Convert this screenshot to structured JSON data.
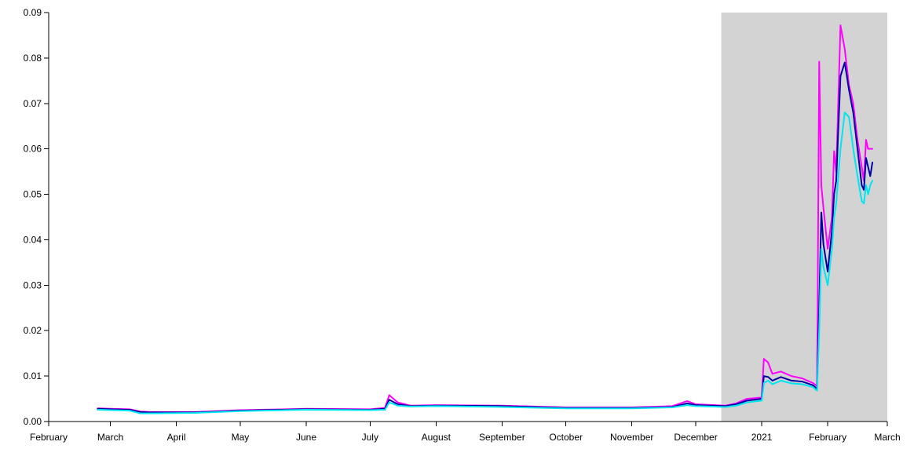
{
  "chart_data": {
    "type": "line",
    "title": "",
    "xlabel": "",
    "ylabel": "",
    "xlim": [
      "2020-02-01",
      "2021-03-01"
    ],
    "ylim": [
      0,
      0.09
    ],
    "grid": false,
    "highlight_region": {
      "start": "2020-12-13",
      "end": "2021-03-01",
      "color": "#d3d3d3"
    },
    "x_tick_labels": [
      {
        "date": "2020-02-01",
        "label": "February"
      },
      {
        "date": "2020-03-01",
        "label": "March"
      },
      {
        "date": "2020-04-01",
        "label": "April"
      },
      {
        "date": "2020-05-01",
        "label": "May"
      },
      {
        "date": "2020-06-01",
        "label": "June"
      },
      {
        "date": "2020-07-01",
        "label": "July"
      },
      {
        "date": "2020-08-01",
        "label": "August"
      },
      {
        "date": "2020-09-01",
        "label": "September"
      },
      {
        "date": "2020-10-01",
        "label": "October"
      },
      {
        "date": "2020-11-01",
        "label": "November"
      },
      {
        "date": "2020-12-01",
        "label": "December"
      },
      {
        "date": "2021-01-01",
        "label": "2021"
      },
      {
        "date": "2021-02-01",
        "label": "February"
      },
      {
        "date": "2021-03-01",
        "label": "March"
      }
    ],
    "y_tick_labels": [
      "0.00",
      "0.01",
      "0.02",
      "0.03",
      "0.04",
      "0.05",
      "0.06",
      "0.07",
      "0.08",
      "0.09"
    ],
    "y_ticks": [
      0,
      0.01,
      0.02,
      0.03,
      0.04,
      0.05,
      0.06,
      0.07,
      0.08,
      0.09
    ],
    "series": [
      {
        "color": "#ff00ff",
        "points": [
          [
            "2020-02-24",
            0.0029
          ],
          [
            "2020-03-01",
            0.0028
          ],
          [
            "2020-03-10",
            0.0027
          ],
          [
            "2020-03-15",
            0.0022
          ],
          [
            "2020-03-20",
            0.0021
          ],
          [
            "2020-04-10",
            0.0021
          ],
          [
            "2020-05-01",
            0.0025
          ],
          [
            "2020-06-01",
            0.0028
          ],
          [
            "2020-07-01",
            0.0027
          ],
          [
            "2020-07-08",
            0.003
          ],
          [
            "2020-07-10",
            0.0058
          ],
          [
            "2020-07-14",
            0.0042
          ],
          [
            "2020-07-20",
            0.0035
          ],
          [
            "2020-08-01",
            0.0036
          ],
          [
            "2020-09-01",
            0.0035
          ],
          [
            "2020-10-01",
            0.0031
          ],
          [
            "2020-11-01",
            0.0031
          ],
          [
            "2020-11-20",
            0.0034
          ],
          [
            "2020-11-27",
            0.0045
          ],
          [
            "2020-12-01",
            0.0038
          ],
          [
            "2020-12-15",
            0.0035
          ],
          [
            "2020-12-20",
            0.004
          ],
          [
            "2020-12-25",
            0.005
          ],
          [
            "2021-01-01",
            0.0053
          ],
          [
            "2021-01-02",
            0.0138
          ],
          [
            "2021-01-04",
            0.013
          ],
          [
            "2021-01-06",
            0.0105
          ],
          [
            "2021-01-10",
            0.011
          ],
          [
            "2021-01-15",
            0.01
          ],
          [
            "2021-01-20",
            0.0095
          ],
          [
            "2021-01-25",
            0.0085
          ],
          [
            "2021-01-27",
            0.0078
          ],
          [
            "2021-01-28",
            0.0792
          ],
          [
            "2021-01-29",
            0.052
          ],
          [
            "2021-01-30",
            0.047
          ],
          [
            "2021-02-01",
            0.038
          ],
          [
            "2021-02-03",
            0.045
          ],
          [
            "2021-02-04",
            0.0595
          ],
          [
            "2021-02-05",
            0.055
          ],
          [
            "2021-02-07",
            0.0872
          ],
          [
            "2021-02-09",
            0.082
          ],
          [
            "2021-02-11",
            0.074
          ],
          [
            "2021-02-13",
            0.07
          ],
          [
            "2021-02-15",
            0.062
          ],
          [
            "2021-02-17",
            0.056
          ],
          [
            "2021-02-18",
            0.053
          ],
          [
            "2021-02-19",
            0.062
          ],
          [
            "2021-02-20",
            0.06
          ],
          [
            "2021-02-21",
            0.06
          ],
          [
            "2021-02-22",
            0.06
          ]
        ]
      },
      {
        "color": "#0000a0",
        "points": [
          [
            "2020-02-24",
            0.0028
          ],
          [
            "2020-03-01",
            0.0027
          ],
          [
            "2020-03-10",
            0.0026
          ],
          [
            "2020-03-15",
            0.0021
          ],
          [
            "2020-03-20",
            0.002
          ],
          [
            "2020-04-10",
            0.002
          ],
          [
            "2020-05-01",
            0.0024
          ],
          [
            "2020-06-01",
            0.0027
          ],
          [
            "2020-07-01",
            0.0026
          ],
          [
            "2020-07-08",
            0.0028
          ],
          [
            "2020-07-10",
            0.0048
          ],
          [
            "2020-07-14",
            0.0038
          ],
          [
            "2020-07-20",
            0.0034
          ],
          [
            "2020-08-01",
            0.0035
          ],
          [
            "2020-09-01",
            0.0034
          ],
          [
            "2020-10-01",
            0.003
          ],
          [
            "2020-11-01",
            0.003
          ],
          [
            "2020-11-20",
            0.0032
          ],
          [
            "2020-11-27",
            0.004
          ],
          [
            "2020-12-01",
            0.0036
          ],
          [
            "2020-12-15",
            0.0034
          ],
          [
            "2020-12-20",
            0.0038
          ],
          [
            "2020-12-25",
            0.0046
          ],
          [
            "2021-01-01",
            0.005
          ],
          [
            "2021-01-02",
            0.01
          ],
          [
            "2021-01-04",
            0.0098
          ],
          [
            "2021-01-06",
            0.009
          ],
          [
            "2021-01-10",
            0.0098
          ],
          [
            "2021-01-15",
            0.009
          ],
          [
            "2021-01-20",
            0.0088
          ],
          [
            "2021-01-25",
            0.008
          ],
          [
            "2021-01-27",
            0.0072
          ],
          [
            "2021-01-28",
            0.025
          ],
          [
            "2021-01-29",
            0.046
          ],
          [
            "2021-01-30",
            0.039
          ],
          [
            "2021-02-01",
            0.033
          ],
          [
            "2021-02-03",
            0.042
          ],
          [
            "2021-02-04",
            0.05
          ],
          [
            "2021-02-05",
            0.053
          ],
          [
            "2021-02-07",
            0.076
          ],
          [
            "2021-02-09",
            0.079
          ],
          [
            "2021-02-11",
            0.073
          ],
          [
            "2021-02-13",
            0.068
          ],
          [
            "2021-02-15",
            0.06
          ],
          [
            "2021-02-17",
            0.052
          ],
          [
            "2021-02-18",
            0.051
          ],
          [
            "2021-02-19",
            0.058
          ],
          [
            "2021-02-20",
            0.056
          ],
          [
            "2021-02-21",
            0.054
          ],
          [
            "2021-02-22",
            0.057
          ]
        ]
      },
      {
        "color": "#00e5ee",
        "points": [
          [
            "2020-02-24",
            0.0026
          ],
          [
            "2020-03-01",
            0.0025
          ],
          [
            "2020-03-10",
            0.0024
          ],
          [
            "2020-03-15",
            0.0018
          ],
          [
            "2020-03-20",
            0.0018
          ],
          [
            "2020-04-10",
            0.0019
          ],
          [
            "2020-05-01",
            0.0023
          ],
          [
            "2020-06-01",
            0.0026
          ],
          [
            "2020-07-01",
            0.0025
          ],
          [
            "2020-07-08",
            0.0026
          ],
          [
            "2020-07-10",
            0.0042
          ],
          [
            "2020-07-14",
            0.0035
          ],
          [
            "2020-07-20",
            0.0033
          ],
          [
            "2020-08-01",
            0.0034
          ],
          [
            "2020-09-01",
            0.0032
          ],
          [
            "2020-10-01",
            0.0029
          ],
          [
            "2020-11-01",
            0.0029
          ],
          [
            "2020-11-20",
            0.0031
          ],
          [
            "2020-11-27",
            0.0036
          ],
          [
            "2020-12-01",
            0.0034
          ],
          [
            "2020-12-15",
            0.0032
          ],
          [
            "2020-12-20",
            0.0035
          ],
          [
            "2020-12-25",
            0.0042
          ],
          [
            "2021-01-01",
            0.0046
          ],
          [
            "2021-01-02",
            0.0085
          ],
          [
            "2021-01-04",
            0.009
          ],
          [
            "2021-01-06",
            0.0082
          ],
          [
            "2021-01-10",
            0.009
          ],
          [
            "2021-01-15",
            0.0084
          ],
          [
            "2021-01-20",
            0.0082
          ],
          [
            "2021-01-25",
            0.0076
          ],
          [
            "2021-01-27",
            0.0068
          ],
          [
            "2021-01-28",
            0.02
          ],
          [
            "2021-01-29",
            0.038
          ],
          [
            "2021-01-30",
            0.034
          ],
          [
            "2021-02-01",
            0.03
          ],
          [
            "2021-02-03",
            0.038
          ],
          [
            "2021-02-04",
            0.045
          ],
          [
            "2021-02-05",
            0.048
          ],
          [
            "2021-02-07",
            0.06
          ],
          [
            "2021-02-09",
            0.068
          ],
          [
            "2021-02-11",
            0.067
          ],
          [
            "2021-02-13",
            0.06
          ],
          [
            "2021-02-15",
            0.054
          ],
          [
            "2021-02-17",
            0.0485
          ],
          [
            "2021-02-18",
            0.048
          ],
          [
            "2021-02-19",
            0.052
          ],
          [
            "2021-02-20",
            0.05
          ],
          [
            "2021-02-21",
            0.052
          ],
          [
            "2021-02-22",
            0.053
          ]
        ]
      }
    ]
  }
}
